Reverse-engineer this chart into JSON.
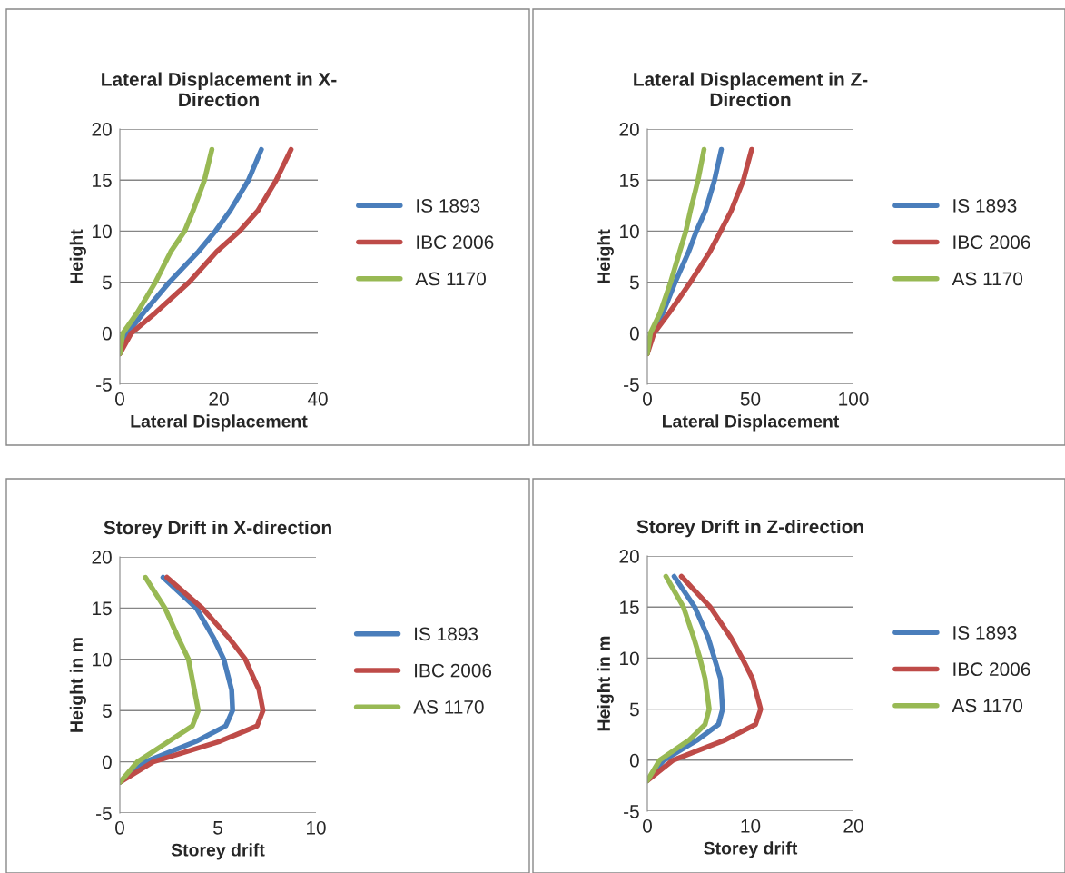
{
  "chart_data": [
    {
      "type": "line",
      "title": "Lateral Displacement in X-Direction",
      "xlabel": "Lateral Displacement",
      "ylabel": "Height",
      "xlim": [
        0,
        40
      ],
      "xticks": [
        0,
        20,
        40
      ],
      "ylim": [
        -5,
        20
      ],
      "yticks": [
        -5,
        0,
        5,
        10,
        15,
        20
      ],
      "grid": "y",
      "legend": "right",
      "series": [
        {
          "name": "IS 1893",
          "color": "#4a7ebb",
          "x": [
            0,
            1.5,
            4.8,
            10,
            15.9,
            19.3,
            22.3,
            26,
            28.6
          ],
          "values": [
            -2,
            0,
            2,
            5,
            8,
            10,
            12,
            15,
            18
          ]
        },
        {
          "name": "IBC 2006",
          "color": "#be4b48",
          "x": [
            0,
            2.3,
            7.2,
            14,
            19.6,
            24.2,
            27.9,
            31.6,
            34.6
          ],
          "values": [
            -2,
            0,
            2,
            5,
            8,
            10,
            12,
            15,
            18
          ]
        },
        {
          "name": "AS 1170",
          "color": "#98b954",
          "x": [
            0,
            0.6,
            3.5,
            7.2,
            10.3,
            13.1,
            14.8,
            17.1,
            18.6
          ],
          "values": [
            -2,
            0,
            2,
            5,
            8,
            10,
            12,
            15,
            18
          ]
        }
      ]
    },
    {
      "type": "line",
      "title": "Lateral Displacement in Z-Direction",
      "xlabel": "Lateral Displacement",
      "ylabel": "Height",
      "xlim": [
        0,
        100
      ],
      "xticks": [
        0,
        50,
        100
      ],
      "ylim": [
        -5,
        20
      ],
      "yticks": [
        -5,
        0,
        5,
        10,
        15,
        20
      ],
      "grid": "y",
      "legend": "right",
      "series": [
        {
          "name": "IS 1893",
          "color": "#4a7ebb",
          "x": [
            0,
            1.8,
            7.6,
            13.5,
            20.1,
            23.8,
            28.2,
            32.6,
            35.9
          ],
          "values": [
            -2,
            0,
            2,
            5,
            8,
            10,
            12,
            15,
            18
          ]
        },
        {
          "name": "IBC 2006",
          "color": "#be4b48",
          "x": [
            0,
            3.2,
            10.6,
            20.9,
            30.4,
            35.6,
            40.7,
            46.6,
            50.6
          ],
          "values": [
            -2,
            0,
            2,
            5,
            8,
            10,
            12,
            15,
            18
          ]
        },
        {
          "name": "AS 1170",
          "color": "#98b954",
          "x": [
            0,
            1.5,
            6.2,
            11.3,
            15.7,
            18.7,
            20.9,
            24.6,
            27.5
          ],
          "values": [
            -2,
            0,
            2,
            5,
            8,
            10,
            12,
            15,
            18
          ]
        }
      ]
    },
    {
      "type": "line",
      "title": "Storey Drift in X-direction",
      "xlabel": "Storey drift",
      "ylabel": "Height in m",
      "xlim": [
        0,
        10
      ],
      "xticks": [
        0,
        5,
        10
      ],
      "ylim": [
        -5,
        20
      ],
      "yticks": [
        -5,
        0,
        5,
        10,
        15,
        20
      ],
      "grid": "y",
      "legend": "right",
      "series": [
        {
          "name": "IS 1893",
          "color": "#4a7ebb",
          "x": [
            0,
            1.3,
            3.9,
            5.4,
            5.75,
            5.7,
            5.3,
            4.8,
            3.9,
            2.2
          ],
          "values": [
            -2,
            0,
            2,
            3.5,
            5,
            7,
            10,
            12,
            15,
            18
          ]
        },
        {
          "name": "IBC 2006",
          "color": "#be4b48",
          "x": [
            0,
            1.7,
            5.1,
            7.0,
            7.3,
            7.1,
            6.4,
            5.6,
            4.2,
            2.4
          ],
          "values": [
            -2,
            0,
            2,
            3.5,
            5,
            7,
            10,
            12,
            15,
            18
          ]
        },
        {
          "name": "AS 1170",
          "color": "#98b954",
          "x": [
            0,
            0.9,
            2.5,
            3.7,
            4.0,
            3.8,
            3.5,
            3.0,
            2.3,
            1.3
          ],
          "values": [
            -2,
            0,
            2,
            3.5,
            5,
            7,
            10,
            12,
            15,
            18
          ]
        }
      ]
    },
    {
      "type": "line",
      "title": "Storey Drift in Z-direction",
      "xlabel": "Storey drift",
      "ylabel": "Height in m",
      "xlim": [
        0,
        20
      ],
      "xticks": [
        0,
        10,
        20
      ],
      "ylim": [
        -5,
        20
      ],
      "yticks": [
        -5,
        0,
        5,
        10,
        15,
        20
      ],
      "grid": "y",
      "legend": "right",
      "series": [
        {
          "name": "IS 1893",
          "color": "#4a7ebb",
          "x": [
            0,
            1.6,
            4.9,
            6.9,
            7.3,
            7.1,
            6.5,
            5.9,
            4.6,
            2.6
          ],
          "values": [
            -2,
            0,
            2,
            3.5,
            5,
            8,
            10,
            12,
            15,
            18
          ]
        },
        {
          "name": "IBC 2006",
          "color": "#be4b48",
          "x": [
            0,
            2.5,
            7.6,
            10.5,
            11.0,
            10.2,
            9.2,
            8.1,
            6.1,
            3.3
          ],
          "values": [
            -2,
            0,
            2,
            3.5,
            5,
            8,
            10,
            12,
            15,
            18
          ]
        },
        {
          "name": "AS 1170",
          "color": "#98b954",
          "x": [
            0,
            1.2,
            4.1,
            5.6,
            6.0,
            5.6,
            5.1,
            4.5,
            3.5,
            1.8
          ],
          "values": [
            -2,
            0,
            2,
            3.5,
            5,
            8,
            10,
            12,
            15,
            18
          ]
        }
      ]
    }
  ]
}
